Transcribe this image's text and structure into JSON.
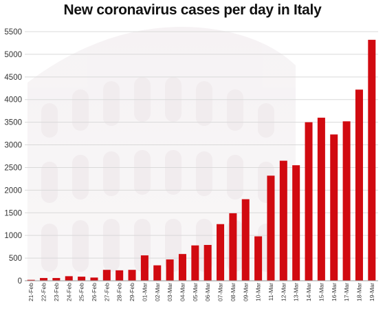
{
  "chart_data": {
    "type": "bar",
    "title": "New coronavirus cases per day in Italy",
    "xlabel": "",
    "ylabel": "",
    "ylim": [
      0,
      5500
    ],
    "yticks": [
      0,
      500,
      1000,
      1500,
      2000,
      2500,
      3000,
      3500,
      4000,
      4500,
      5000,
      5500
    ],
    "grid": true,
    "legend": "none",
    "bar_color": "#d10a10",
    "categories": [
      "21-Feb",
      "22-Feb",
      "23-Feb",
      "24-Feb",
      "25-Feb",
      "26-Feb",
      "27-Feb",
      "28-Feb",
      "29-Feb",
      "01-Mar",
      "02-Mar",
      "03-Mar",
      "04-Mar",
      "05-Mar",
      "06-Mar",
      "07-Mar",
      "08-Mar",
      "09-Mar",
      "10-Mar",
      "11-Mar",
      "12-Mar",
      "13-Mar",
      "14-Mar",
      "15-Mar",
      "16-Mar",
      "17-Mar",
      "18-Mar",
      "19-Mar"
    ],
    "values": [
      20,
      60,
      60,
      100,
      90,
      70,
      240,
      230,
      240,
      560,
      340,
      470,
      590,
      780,
      790,
      1250,
      1490,
      1800,
      980,
      2320,
      2650,
      2550,
      3500,
      3600,
      3230,
      3520,
      4220,
      5320
    ]
  }
}
